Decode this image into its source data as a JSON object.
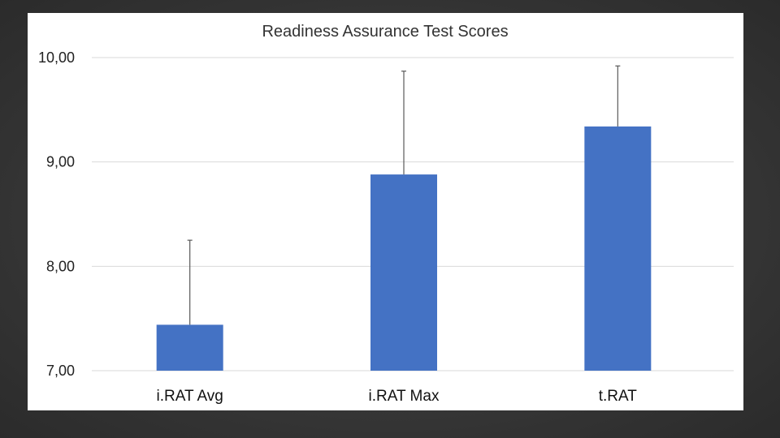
{
  "chart_data": {
    "type": "bar",
    "title": "Readiness Assurance Test Scores",
    "xlabel": "",
    "ylabel": "",
    "categories": [
      "i.RAT Avg",
      "i.RAT Max",
      "t.RAT"
    ],
    "values": [
      7.44,
      8.88,
      9.34
    ],
    "error_plus": [
      0.81,
      0.99,
      0.58
    ],
    "ylim": [
      7,
      10
    ],
    "yticks": [
      7,
      8,
      9,
      10
    ],
    "ytick_labels": [
      "7,00",
      "8,00",
      "9,00",
      "10,00"
    ],
    "grid": true,
    "legend": "none",
    "bar_color": "#4472C4",
    "error_color": "#595959"
  }
}
